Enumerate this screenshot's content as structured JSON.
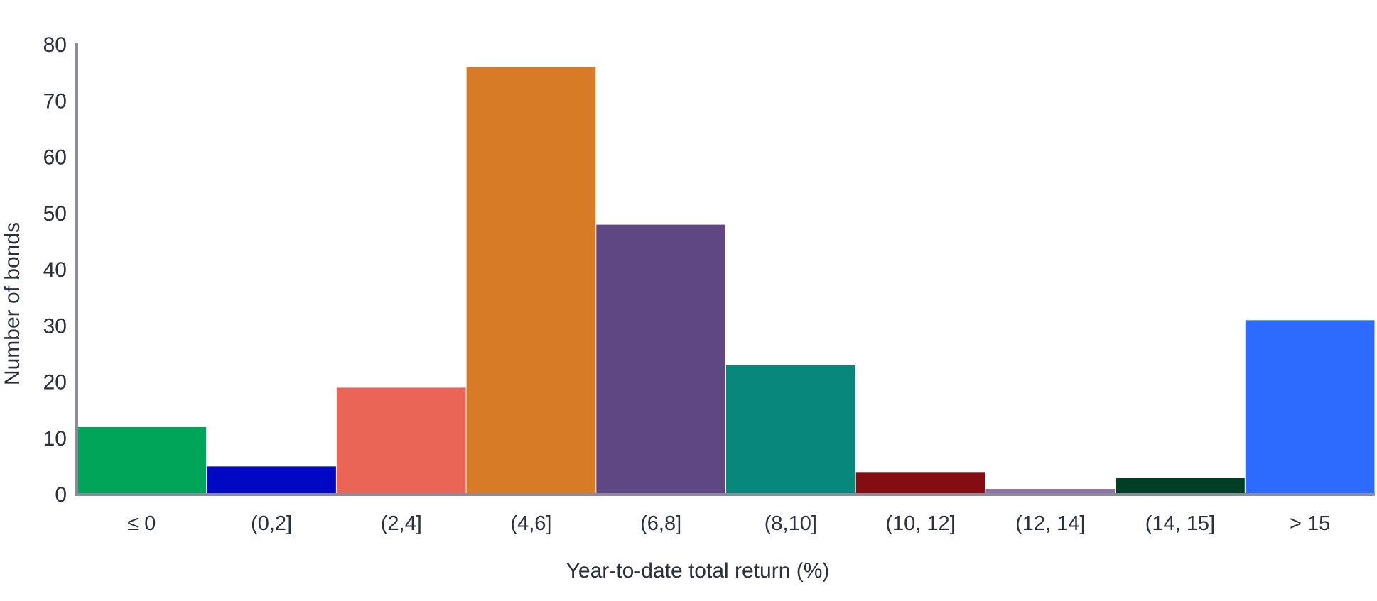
{
  "chart_data": {
    "type": "bar",
    "title": "",
    "xlabel": "Year-to-date total return (%)",
    "ylabel": "Number of bonds",
    "categories": [
      "≤ 0",
      "(0,2]",
      "(2,4]",
      "(4,6]",
      "(6,8]",
      "(8,10]",
      "(10, 12]",
      "(12, 14]",
      "(14, 15]",
      "> 15"
    ],
    "values": [
      12,
      5,
      19,
      76,
      48,
      23,
      4,
      1,
      3,
      31
    ],
    "colors": [
      "#00a55a",
      "#0008c4",
      "#ea6555",
      "#d87b27",
      "#5f4783",
      "#08877c",
      "#840d14",
      "#8c73a3",
      "#003e25",
      "#2d6bff"
    ],
    "ylim": [
      0,
      80
    ],
    "yticks": [
      0,
      10,
      20,
      30,
      40,
      50,
      60,
      70,
      80
    ],
    "grid": false,
    "legend": "none",
    "axis_color": "#8a8c9e"
  }
}
